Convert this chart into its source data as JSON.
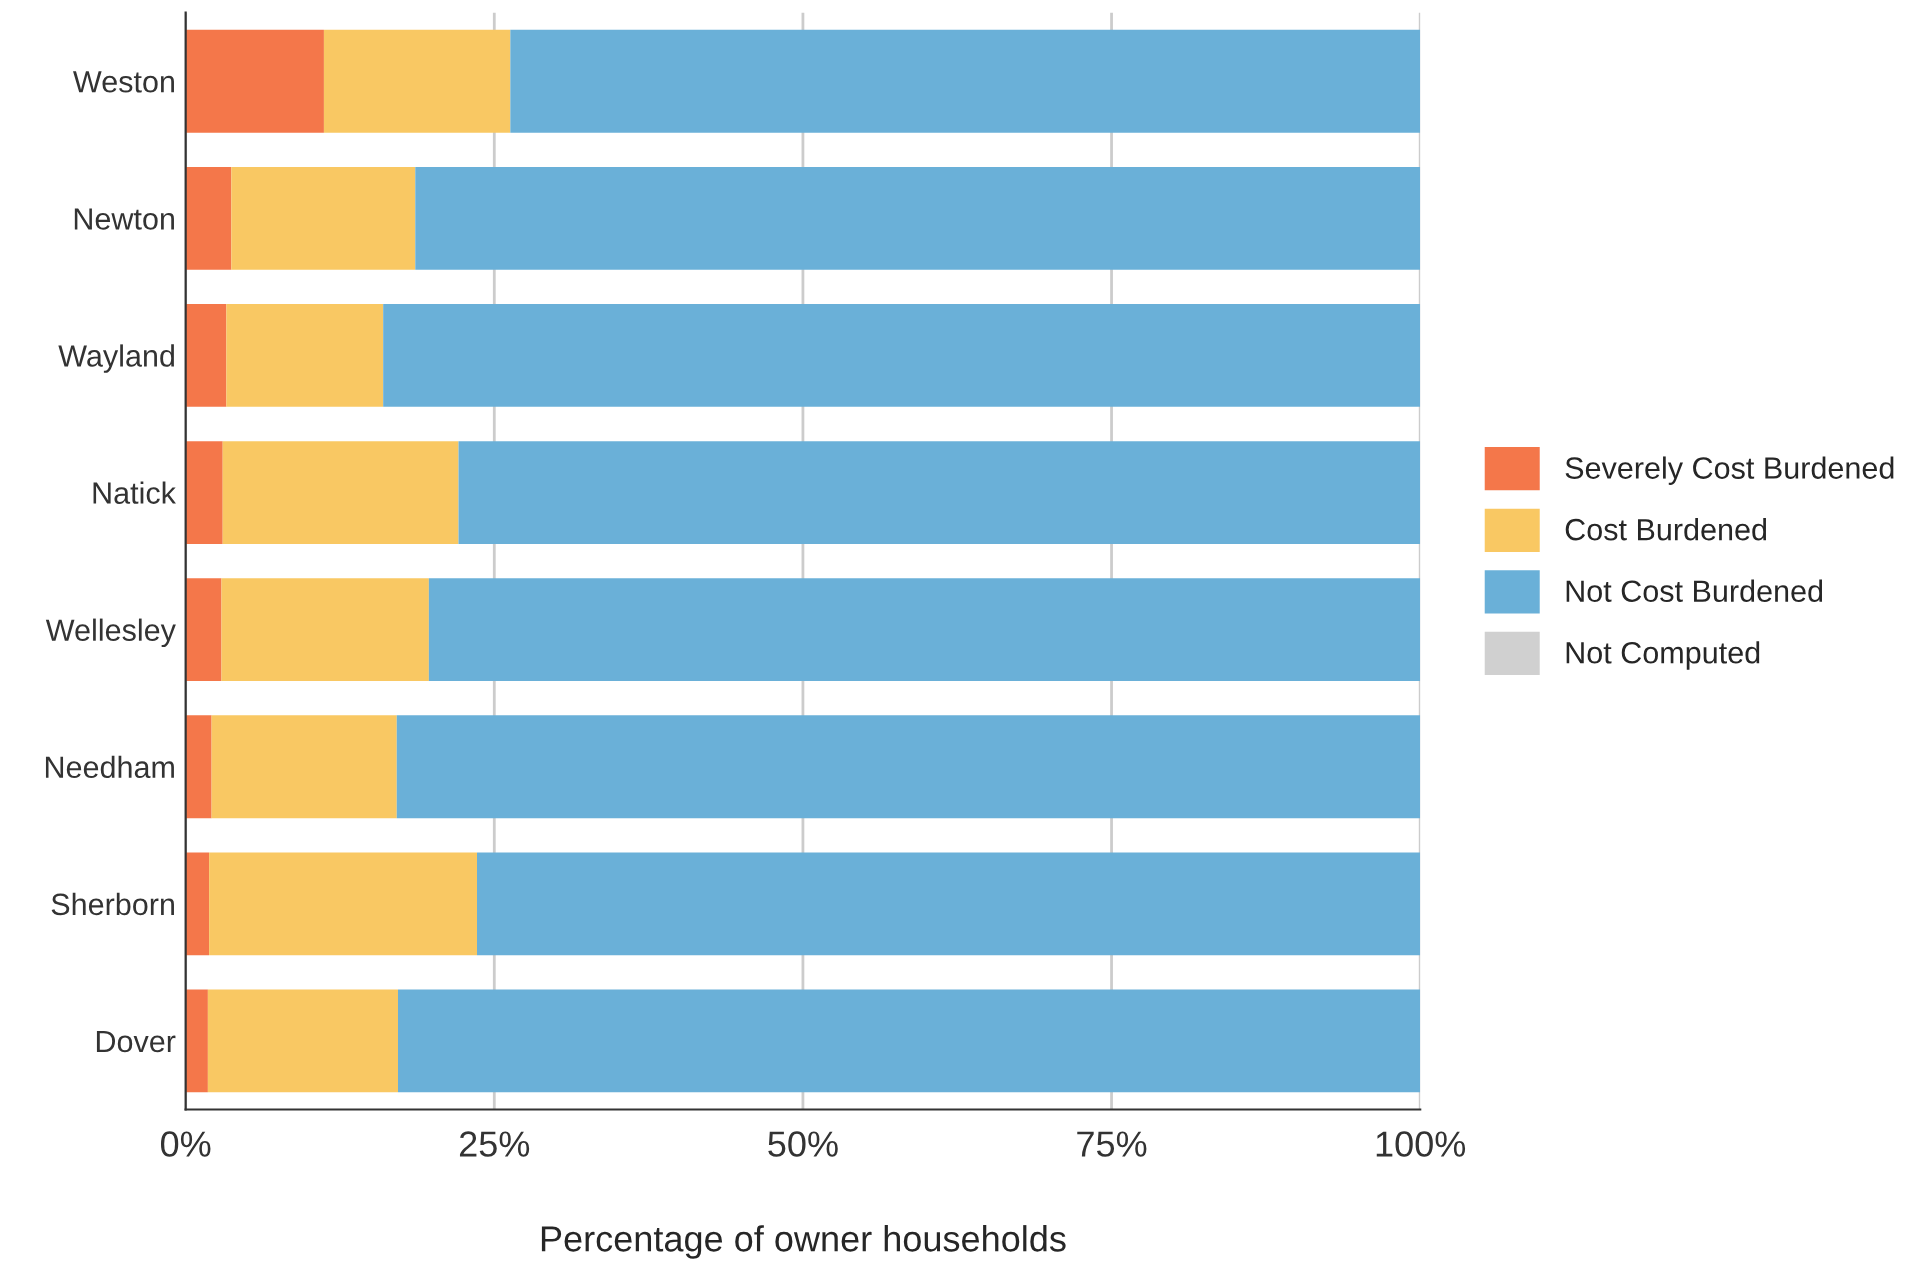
{
  "chart_data": {
    "type": "bar",
    "orientation": "horizontal",
    "stacked": true,
    "xlabel": "Percentage of owner households",
    "categories": [
      "Weston",
      "Newton",
      "Wayland",
      "Natick",
      "Wellesley",
      "Needham",
      "Sherborn",
      "Dover"
    ],
    "series": [
      {
        "name": "Severely Cost Burdened",
        "color": "#f4774a",
        "values": [
          11.2,
          3.7,
          3.3,
          3.0,
          2.9,
          2.1,
          1.9,
          1.8
        ]
      },
      {
        "name": "Cost Burdened",
        "color": "#f9c863",
        "values": [
          15.1,
          14.9,
          12.7,
          19.1,
          16.8,
          15.0,
          21.7,
          15.4
        ]
      },
      {
        "name": "Not Cost Burdened",
        "color": "#6ab0d8",
        "values": [
          73.7,
          81.4,
          84.0,
          77.9,
          80.3,
          82.9,
          76.4,
          82.8
        ]
      },
      {
        "name": "Not Computed",
        "color": "#d0d0d0",
        "values": [
          0,
          0,
          0,
          0,
          0,
          0,
          0,
          0
        ]
      }
    ],
    "xlim": [
      0,
      100
    ],
    "xticks": [
      {
        "value": 0,
        "label": "0%"
      },
      {
        "value": 25,
        "label": "25%"
      },
      {
        "value": 50,
        "label": "50%"
      },
      {
        "value": 75,
        "label": "75%"
      },
      {
        "value": 100,
        "label": "100%"
      }
    ],
    "grid": "x",
    "legend": "right"
  }
}
